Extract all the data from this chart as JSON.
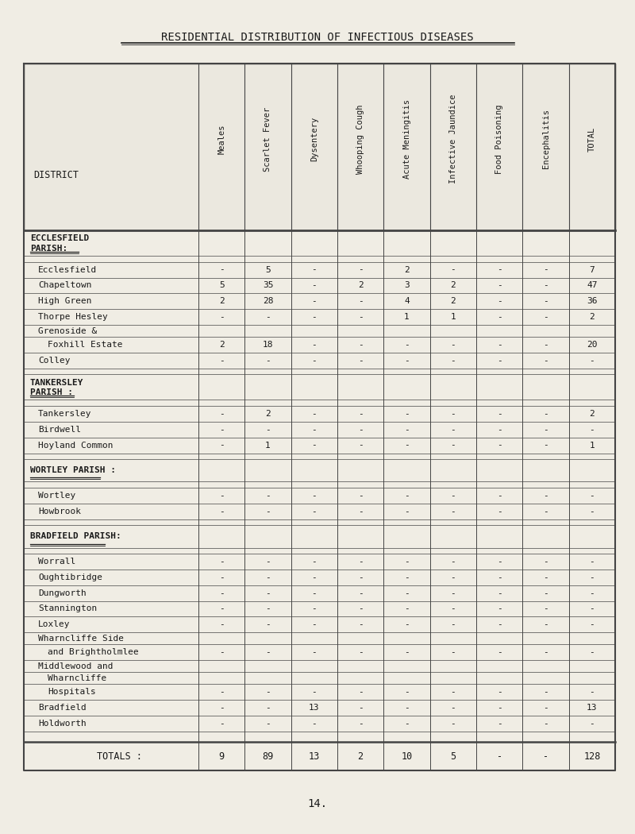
{
  "title": "RESIDENTIAL DISTRIBUTION OF INFECTIOUS DISEASES",
  "col_headers": [
    "Meales",
    "Scarlet Fever",
    "Dysentery",
    "Whooping Cough",
    "Acute Meningitis",
    "Infective Jaundice",
    "Food Poisoning",
    "Encephalitis",
    "TOTAL"
  ],
  "district_label": "DISTRICT",
  "rows": [
    {
      "type": "section",
      "name": "ECCLESFIELD",
      "name2": "PARISH:"
    },
    {
      "type": "blank",
      "name": "",
      "vals": [
        "",
        "",
        "",
        "",
        "",
        "",
        "",
        "",
        ""
      ]
    },
    {
      "type": "data",
      "name": "Ecclesfield",
      "vals": [
        "-",
        "5",
        "-",
        "-",
        "2",
        "-",
        "-",
        "-",
        "7"
      ]
    },
    {
      "type": "data",
      "name": "Chapeltown",
      "vals": [
        "5",
        "35",
        "-",
        "2",
        "3",
        "2",
        "-",
        "-",
        "47"
      ]
    },
    {
      "type": "data",
      "name": "High Green",
      "vals": [
        "2",
        "28",
        "-",
        "-",
        "4",
        "2",
        "-",
        "-",
        "36"
      ]
    },
    {
      "type": "data",
      "name": "Thorpe Hesley",
      "vals": [
        "-",
        "-",
        "-",
        "-",
        "1",
        "1",
        "-",
        "-",
        "2"
      ]
    },
    {
      "type": "data2",
      "name": "Grenoside &",
      "vals": [
        "",
        "",
        "",
        "",
        "",
        "",
        "",
        "",
        ""
      ]
    },
    {
      "type": "data",
      "name": "  Foxhill Estate",
      "vals": [
        "2",
        "18",
        "-",
        "-",
        "-",
        "-",
        "-",
        "-",
        "20"
      ]
    },
    {
      "type": "data",
      "name": "Colley",
      "vals": [
        "-",
        "-",
        "-",
        "-",
        "-",
        "-",
        "-",
        "-",
        "-"
      ]
    },
    {
      "type": "blank",
      "name": "",
      "vals": [
        "",
        "",
        "",
        "",
        "",
        "",
        "",
        "",
        ""
      ]
    },
    {
      "type": "section",
      "name": "TANKERSLEY",
      "name2": "PARISH :"
    },
    {
      "type": "blank",
      "name": "",
      "vals": [
        "",
        "",
        "",
        "",
        "",
        "",
        "",
        "",
        ""
      ]
    },
    {
      "type": "data",
      "name": "Tankersley",
      "vals": [
        "-",
        "2",
        "-",
        "-",
        "-",
        "-",
        "-",
        "-",
        "2"
      ]
    },
    {
      "type": "data",
      "name": "Birdwell",
      "vals": [
        "-",
        "-",
        "-",
        "-",
        "-",
        "-",
        "-",
        "-",
        "-"
      ]
    },
    {
      "type": "data",
      "name": "Hoyland Common",
      "vals": [
        "-",
        "1",
        "-",
        "-",
        "-",
        "-",
        "-",
        "-",
        "1"
      ]
    },
    {
      "type": "blank",
      "name": "",
      "vals": [
        "",
        "",
        "",
        "",
        "",
        "",
        "",
        "",
        ""
      ]
    },
    {
      "type": "section1",
      "name": "WORTLEY PARISH :"
    },
    {
      "type": "blank",
      "name": "",
      "vals": [
        "",
        "",
        "",
        "",
        "",
        "",
        "",
        "",
        ""
      ]
    },
    {
      "type": "data",
      "name": "Wortley",
      "vals": [
        "-",
        "-",
        "-",
        "-",
        "-",
        "-",
        "-",
        "-",
        "-"
      ]
    },
    {
      "type": "data",
      "name": "Howbrook",
      "vals": [
        "-",
        "-",
        "-",
        "-",
        "-",
        "-",
        "-",
        "-",
        "-"
      ]
    },
    {
      "type": "blank",
      "name": "",
      "vals": [
        "",
        "",
        "",
        "",
        "",
        "",
        "",
        "",
        ""
      ]
    },
    {
      "type": "section1",
      "name": "BRADFIELD PARISH:"
    },
    {
      "type": "blank",
      "name": "",
      "vals": [
        "",
        "",
        "",
        "",
        "",
        "",
        "",
        "",
        ""
      ]
    },
    {
      "type": "data",
      "name": "Worrall",
      "vals": [
        "-",
        "-",
        "-",
        "-",
        "-",
        "-",
        "-",
        "-",
        "-"
      ]
    },
    {
      "type": "data",
      "name": "Oughtibridge",
      "vals": [
        "-",
        "-",
        "-",
        "-",
        "-",
        "-",
        "-",
        "-",
        "-"
      ]
    },
    {
      "type": "data",
      "name": "Dungworth",
      "vals": [
        "-",
        "-",
        "-",
        "-",
        "-",
        "-",
        "-",
        "-",
        "-"
      ]
    },
    {
      "type": "data",
      "name": "Stannington",
      "vals": [
        "-",
        "-",
        "-",
        "-",
        "-",
        "-",
        "-",
        "-",
        "-"
      ]
    },
    {
      "type": "data",
      "name": "Loxley",
      "vals": [
        "-",
        "-",
        "-",
        "-",
        "-",
        "-",
        "-",
        "-",
        "-"
      ]
    },
    {
      "type": "data2",
      "name": "Wharncliffe Side",
      "vals": [
        "",
        "",
        "",
        "",
        "",
        "",
        "",
        "",
        ""
      ]
    },
    {
      "type": "data",
      "name": "  and Brightholmlee",
      "vals": [
        "-",
        "-",
        "-",
        "-",
        "-",
        "-",
        "-",
        "-",
        "-"
      ]
    },
    {
      "type": "data2",
      "name": "Middlewood and",
      "vals": [
        "",
        "",
        "",
        "",
        "",
        "",
        "",
        "",
        ""
      ]
    },
    {
      "type": "data2",
      "name": "  Wharncliffe",
      "vals": [
        "",
        "",
        "",
        "",
        "",
        "",
        "",
        "",
        ""
      ]
    },
    {
      "type": "data",
      "name": "  Hospitals",
      "vals": [
        "-",
        "-",
        "-",
        "-",
        "-",
        "-",
        "-",
        "-",
        "-"
      ]
    },
    {
      "type": "data",
      "name": "Bradfield",
      "vals": [
        "-",
        "-",
        "13",
        "-",
        "-",
        "-",
        "-",
        "-",
        "13"
      ]
    },
    {
      "type": "data",
      "name": "Holdworth",
      "vals": [
        "-",
        "-",
        "-",
        "-",
        "-",
        "-",
        "-",
        "-",
        "-"
      ]
    },
    {
      "type": "blank2",
      "name": "",
      "vals": [
        "",
        "",
        "",
        "",
        "",
        "",
        "",
        "",
        ""
      ]
    },
    {
      "type": "totals",
      "name": "TOTALS :",
      "vals": [
        "9",
        "89",
        "13",
        "2",
        "10",
        "5",
        "-",
        "-",
        "128"
      ]
    }
  ],
  "page_number": "14.",
  "bg_color": "#f0ede4",
  "table_bg": "#f0ede4",
  "line_color": "#444444",
  "text_color": "#1a1a1a"
}
